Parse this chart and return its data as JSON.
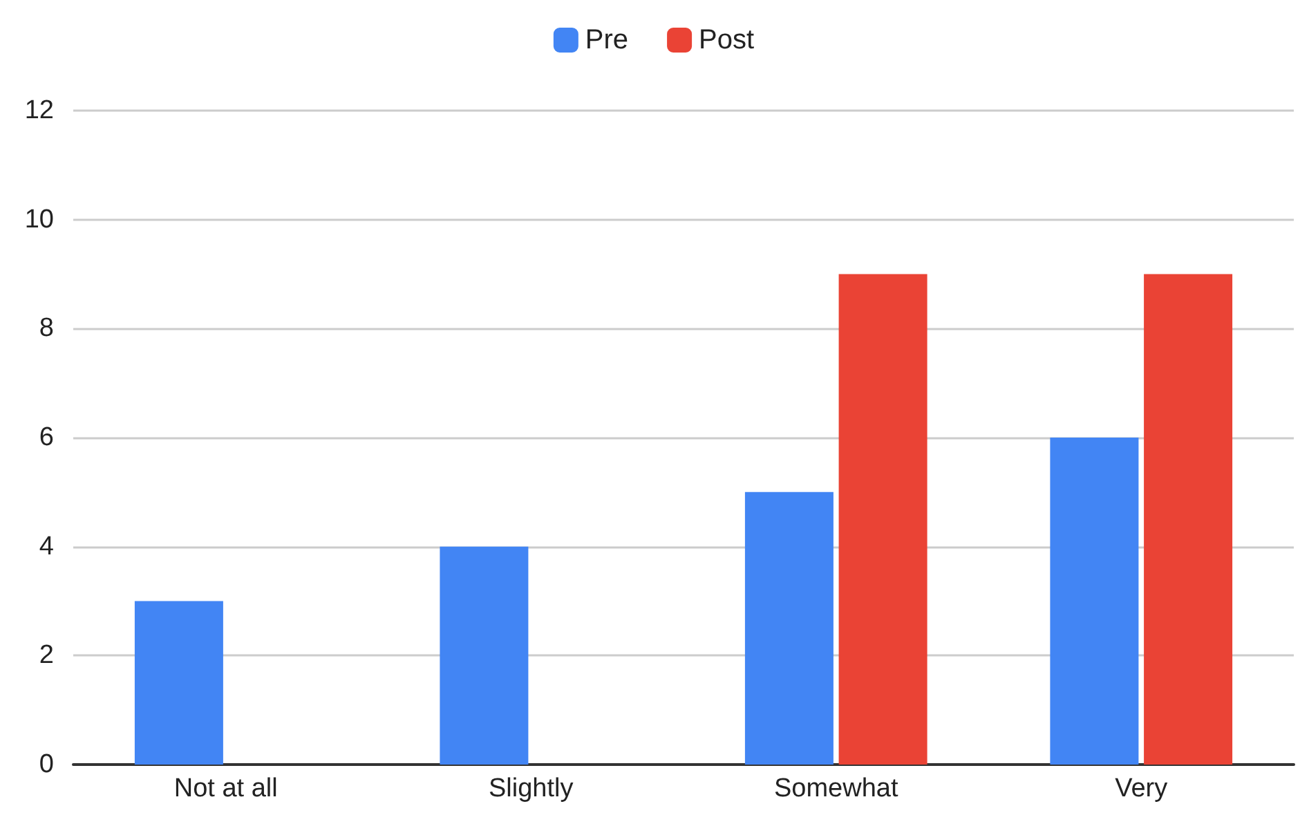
{
  "chart_data": {
    "type": "bar",
    "categories": [
      "Not at all",
      "Slightly",
      "Somewhat",
      "Very"
    ],
    "series": [
      {
        "name": "Pre",
        "color": "#4285f4",
        "values": [
          3,
          4,
          5,
          6
        ]
      },
      {
        "name": "Post",
        "color": "#ea4335",
        "values": [
          0,
          0,
          9,
          9
        ]
      }
    ],
    "ylim": [
      0,
      12
    ],
    "yticks": [
      0,
      2,
      4,
      6,
      8,
      10,
      12
    ],
    "grid": "y",
    "legend": "top"
  }
}
